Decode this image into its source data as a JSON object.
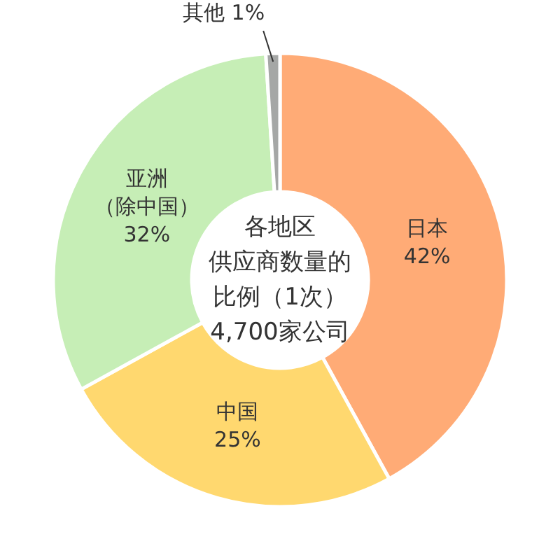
{
  "chart_data": {
    "type": "donut",
    "title": "各地区供应商数量的比例（1次）",
    "subtitle": "4,700家公司",
    "categories": [
      "日本",
      "中国",
      "亚洲（除中国）",
      "其他"
    ],
    "values": [
      42,
      25,
      32,
      1
    ],
    "colors": [
      "#ffab76",
      "#ffd86f",
      "#c6eeb6",
      "#a5a7a6"
    ],
    "value_labels": [
      "42%",
      "25%",
      "32%",
      "1%"
    ]
  }
}
